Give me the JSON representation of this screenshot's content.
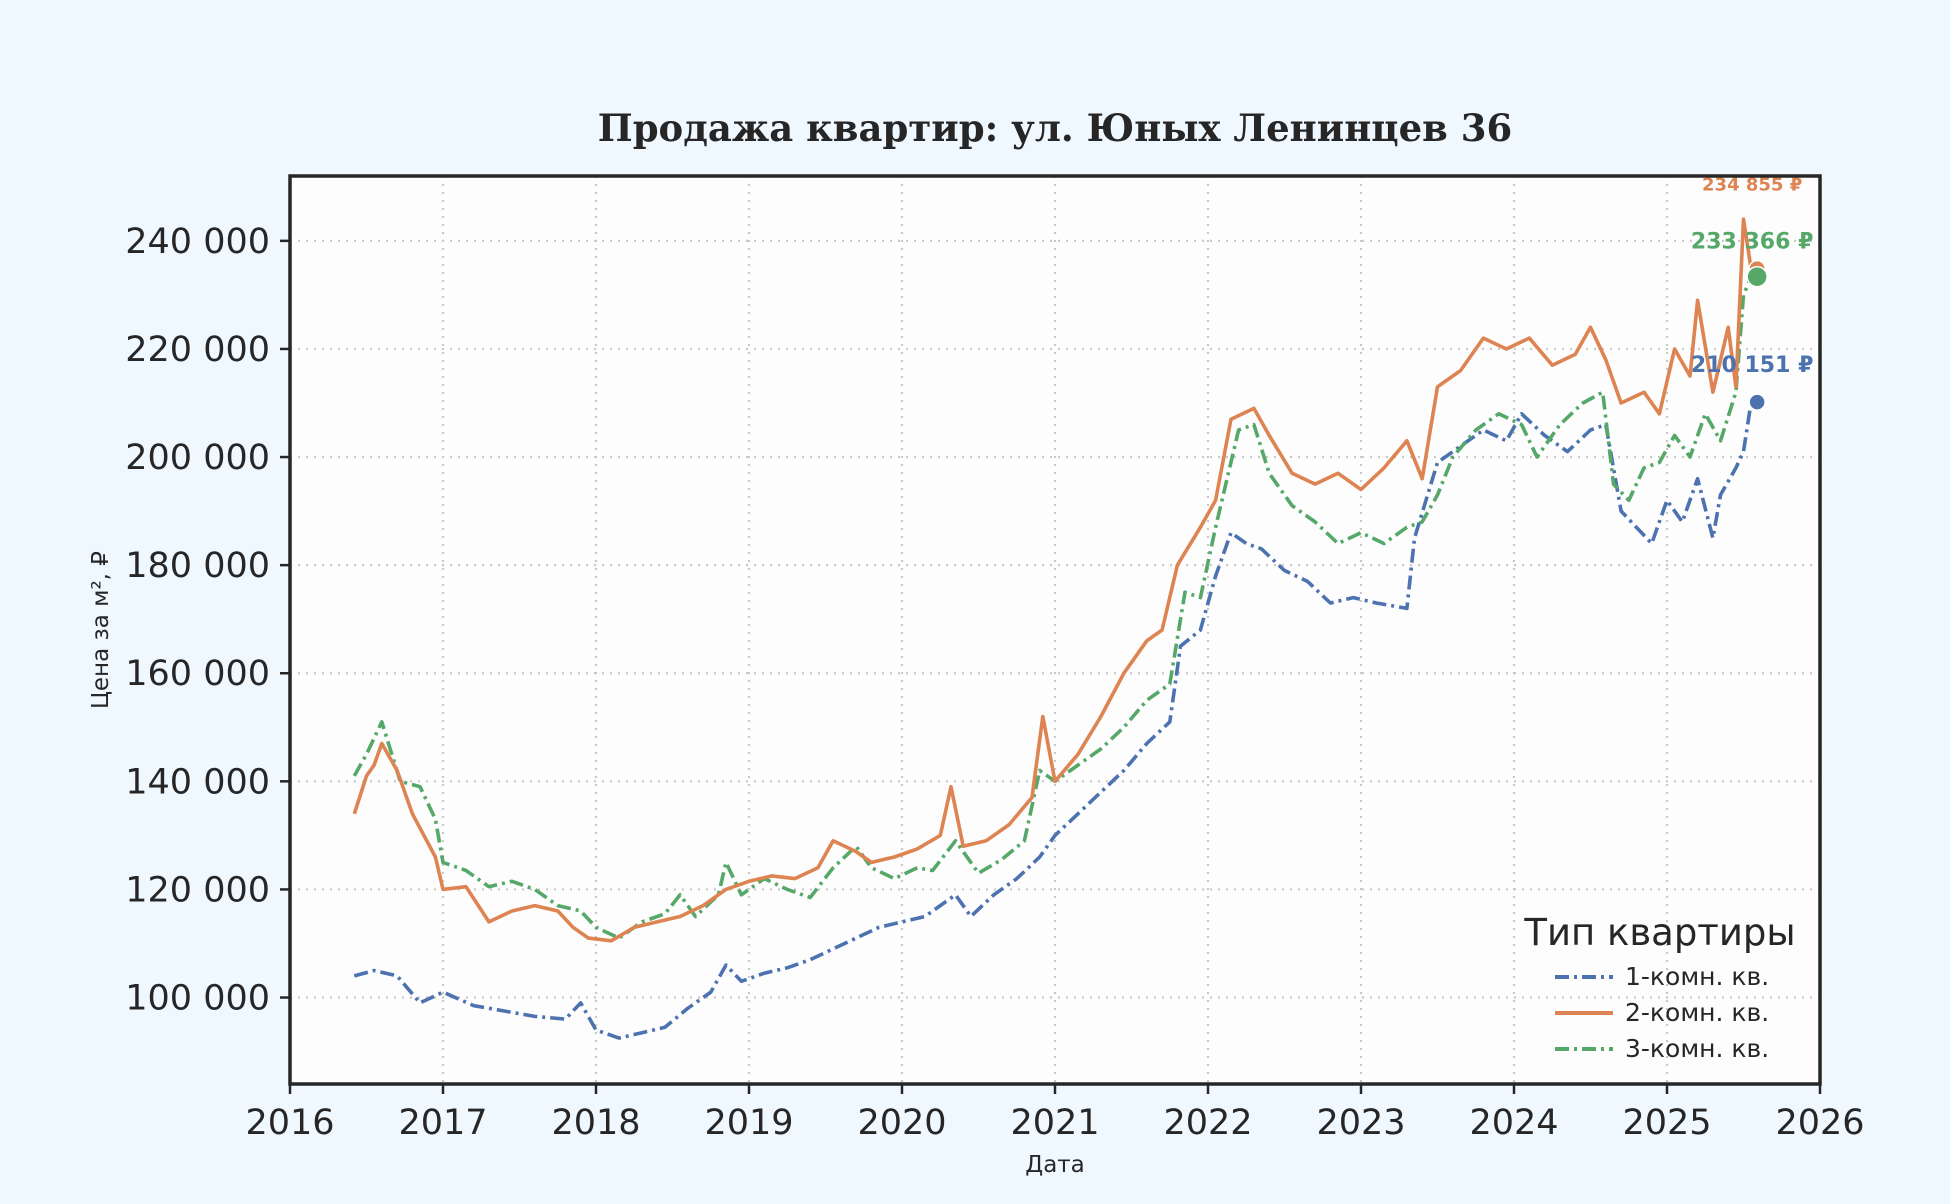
{
  "chart_data": {
    "type": "line",
    "title": "Продажа квартир: ул. Юных Ленинцев 36",
    "xlabel": "Дата",
    "ylabel": "Цена за м², ₽",
    "xlim": [
      2016,
      2026
    ],
    "ylim": [
      84000,
      252000
    ],
    "x_ticks": [
      "2016",
      "2017",
      "2018",
      "2019",
      "2020",
      "2021",
      "2022",
      "2023",
      "2024",
      "2025",
      "2026"
    ],
    "y_ticks": [
      {
        "value": 100000,
        "label": "100 000"
      },
      {
        "value": 120000,
        "label": "120 000"
      },
      {
        "value": 140000,
        "label": "140 000"
      },
      {
        "value": 160000,
        "label": "160 000"
      },
      {
        "value": 180000,
        "label": "180 000"
      },
      {
        "value": 200000,
        "label": "200 000"
      },
      {
        "value": 220000,
        "label": "220 000"
      },
      {
        "value": 240000,
        "label": "240 000"
      }
    ],
    "grid": true,
    "legend": {
      "title": "Тип квартиры",
      "position": "bottom-right"
    },
    "series": [
      {
        "name": "1-комн. кв.",
        "color": "#4c72b0",
        "style": "dashdot",
        "end_label": "210 151 ₽",
        "end_value": 210151,
        "points": [
          [
            2016.42,
            104000
          ],
          [
            2016.55,
            105000
          ],
          [
            2016.7,
            104000
          ],
          [
            2016.85,
            99000
          ],
          [
            2017.0,
            101000
          ],
          [
            2017.2,
            98500
          ],
          [
            2017.4,
            97500
          ],
          [
            2017.6,
            96500
          ],
          [
            2017.8,
            96000
          ],
          [
            2017.9,
            99000
          ],
          [
            2018.0,
            94000
          ],
          [
            2018.15,
            92500
          ],
          [
            2018.3,
            93500
          ],
          [
            2018.45,
            94500
          ],
          [
            2018.6,
            98000
          ],
          [
            2018.75,
            101000
          ],
          [
            2018.85,
            106000
          ],
          [
            2018.95,
            103000
          ],
          [
            2019.1,
            104500
          ],
          [
            2019.25,
            105500
          ],
          [
            2019.4,
            107000
          ],
          [
            2019.55,
            109000
          ],
          [
            2019.7,
            111000
          ],
          [
            2019.85,
            113000
          ],
          [
            2020.0,
            114000
          ],
          [
            2020.15,
            115000
          ],
          [
            2020.25,
            117000
          ],
          [
            2020.35,
            119000
          ],
          [
            2020.45,
            115000
          ],
          [
            2020.6,
            119000
          ],
          [
            2020.75,
            122000
          ],
          [
            2020.9,
            126000
          ],
          [
            2021.0,
            130000
          ],
          [
            2021.15,
            134000
          ],
          [
            2021.3,
            138000
          ],
          [
            2021.45,
            142000
          ],
          [
            2021.6,
            147000
          ],
          [
            2021.75,
            151000
          ],
          [
            2021.82,
            165000
          ],
          [
            2021.95,
            168000
          ],
          [
            2022.05,
            178000
          ],
          [
            2022.15,
            186000
          ],
          [
            2022.25,
            184000
          ],
          [
            2022.35,
            183000
          ],
          [
            2022.5,
            179000
          ],
          [
            2022.65,
            177000
          ],
          [
            2022.8,
            173000
          ],
          [
            2022.95,
            174000
          ],
          [
            2023.1,
            173000
          ],
          [
            2023.3,
            172000
          ],
          [
            2023.35,
            185000
          ],
          [
            2023.5,
            199000
          ],
          [
            2023.65,
            202000
          ],
          [
            2023.8,
            205000
          ],
          [
            2023.95,
            203000
          ],
          [
            2024.05,
            208000
          ],
          [
            2024.2,
            204000
          ],
          [
            2024.35,
            201000
          ],
          [
            2024.5,
            205000
          ],
          [
            2024.6,
            206000
          ],
          [
            2024.7,
            190000
          ],
          [
            2024.8,
            187000
          ],
          [
            2024.9,
            184000
          ],
          [
            2025.0,
            192000
          ],
          [
            2025.1,
            188000
          ],
          [
            2025.2,
            196000
          ],
          [
            2025.3,
            185000
          ],
          [
            2025.35,
            193000
          ],
          [
            2025.45,
            198000
          ],
          [
            2025.5,
            201000
          ],
          [
            2025.55,
            210151
          ]
        ]
      },
      {
        "name": "2-комн. кв.",
        "color": "#dd8452",
        "style": "solid",
        "end_label": "234 855 ₽",
        "end_value": 234855,
        "points": [
          [
            2016.42,
            134000
          ],
          [
            2016.5,
            141000
          ],
          [
            2016.55,
            143000
          ],
          [
            2016.6,
            147000
          ],
          [
            2016.7,
            142000
          ],
          [
            2016.8,
            134000
          ],
          [
            2016.95,
            126000
          ],
          [
            2017.0,
            120000
          ],
          [
            2017.15,
            120500
          ],
          [
            2017.3,
            114000
          ],
          [
            2017.45,
            116000
          ],
          [
            2017.6,
            117000
          ],
          [
            2017.75,
            116000
          ],
          [
            2017.85,
            113000
          ],
          [
            2017.95,
            111000
          ],
          [
            2018.1,
            110500
          ],
          [
            2018.25,
            113000
          ],
          [
            2018.4,
            114000
          ],
          [
            2018.55,
            115000
          ],
          [
            2018.7,
            117000
          ],
          [
            2018.85,
            120000
          ],
          [
            2019.0,
            121500
          ],
          [
            2019.15,
            122500
          ],
          [
            2019.3,
            122000
          ],
          [
            2019.45,
            124000
          ],
          [
            2019.55,
            129000
          ],
          [
            2019.7,
            127000
          ],
          [
            2019.8,
            125000
          ],
          [
            2019.95,
            126000
          ],
          [
            2020.1,
            127500
          ],
          [
            2020.25,
            130000
          ],
          [
            2020.32,
            139000
          ],
          [
            2020.4,
            128000
          ],
          [
            2020.55,
            129000
          ],
          [
            2020.7,
            132000
          ],
          [
            2020.85,
            137000
          ],
          [
            2020.92,
            152000
          ],
          [
            2021.0,
            140000
          ],
          [
            2021.15,
            145000
          ],
          [
            2021.3,
            152000
          ],
          [
            2021.45,
            160000
          ],
          [
            2021.6,
            166000
          ],
          [
            2021.7,
            168000
          ],
          [
            2021.8,
            180000
          ],
          [
            2021.95,
            187000
          ],
          [
            2022.05,
            192000
          ],
          [
            2022.15,
            207000
          ],
          [
            2022.3,
            209000
          ],
          [
            2022.4,
            204000
          ],
          [
            2022.55,
            197000
          ],
          [
            2022.7,
            195000
          ],
          [
            2022.85,
            197000
          ],
          [
            2023.0,
            194000
          ],
          [
            2023.15,
            198000
          ],
          [
            2023.3,
            203000
          ],
          [
            2023.4,
            196000
          ],
          [
            2023.5,
            213000
          ],
          [
            2023.65,
            216000
          ],
          [
            2023.8,
            222000
          ],
          [
            2023.95,
            220000
          ],
          [
            2024.1,
            222000
          ],
          [
            2024.25,
            217000
          ],
          [
            2024.4,
            219000
          ],
          [
            2024.5,
            224000
          ],
          [
            2024.6,
            218000
          ],
          [
            2024.7,
            210000
          ],
          [
            2024.85,
            212000
          ],
          [
            2024.95,
            208000
          ],
          [
            2025.05,
            220000
          ],
          [
            2025.15,
            215000
          ],
          [
            2025.2,
            229000
          ],
          [
            2025.3,
            212000
          ],
          [
            2025.4,
            224000
          ],
          [
            2025.45,
            213000
          ],
          [
            2025.5,
            244000
          ],
          [
            2025.55,
            234855
          ]
        ]
      },
      {
        "name": "3-комн. кв.",
        "color": "#55a868",
        "style": "dashdot",
        "end_label": "233 366 ₽",
        "end_value": 233366,
        "points": [
          [
            2016.42,
            141000
          ],
          [
            2016.5,
            145000
          ],
          [
            2016.6,
            151000
          ],
          [
            2016.72,
            140000
          ],
          [
            2016.85,
            139000
          ],
          [
            2016.95,
            133000
          ],
          [
            2017.0,
            125000
          ],
          [
            2017.15,
            123500
          ],
          [
            2017.3,
            120500
          ],
          [
            2017.45,
            121500
          ],
          [
            2017.6,
            120000
          ],
          [
            2017.75,
            117000
          ],
          [
            2017.9,
            116000
          ],
          [
            2018.0,
            113000
          ],
          [
            2018.15,
            111000
          ],
          [
            2018.3,
            114000
          ],
          [
            2018.45,
            115500
          ],
          [
            2018.55,
            119000
          ],
          [
            2018.65,
            115000
          ],
          [
            2018.8,
            119000
          ],
          [
            2018.85,
            125000
          ],
          [
            2018.95,
            119000
          ],
          [
            2019.1,
            122000
          ],
          [
            2019.25,
            120000
          ],
          [
            2019.4,
            118500
          ],
          [
            2019.55,
            124000
          ],
          [
            2019.7,
            128000
          ],
          [
            2019.8,
            124000
          ],
          [
            2019.95,
            122000
          ],
          [
            2020.1,
            124000
          ],
          [
            2020.2,
            123500
          ],
          [
            2020.35,
            129000
          ],
          [
            2020.5,
            123000
          ],
          [
            2020.65,
            125500
          ],
          [
            2020.8,
            129000
          ],
          [
            2020.9,
            142000
          ],
          [
            2021.0,
            140000
          ],
          [
            2021.15,
            143000
          ],
          [
            2021.3,
            146000
          ],
          [
            2021.45,
            150000
          ],
          [
            2021.6,
            155000
          ],
          [
            2021.75,
            158000
          ],
          [
            2021.85,
            175000
          ],
          [
            2021.95,
            174000
          ],
          [
            2022.05,
            187000
          ],
          [
            2022.2,
            205000
          ],
          [
            2022.3,
            206000
          ],
          [
            2022.4,
            197000
          ],
          [
            2022.55,
            191000
          ],
          [
            2022.7,
            188000
          ],
          [
            2022.85,
            184000
          ],
          [
            2023.0,
            186000
          ],
          [
            2023.15,
            184000
          ],
          [
            2023.3,
            187000
          ],
          [
            2023.4,
            188000
          ],
          [
            2023.5,
            193000
          ],
          [
            2023.6,
            200000
          ],
          [
            2023.75,
            205000
          ],
          [
            2023.9,
            208000
          ],
          [
            2024.05,
            206000
          ],
          [
            2024.15,
            200000
          ],
          [
            2024.3,
            206000
          ],
          [
            2024.45,
            210000
          ],
          [
            2024.58,
            212000
          ],
          [
            2024.65,
            195000
          ],
          [
            2024.75,
            192000
          ],
          [
            2024.85,
            198000
          ],
          [
            2024.95,
            199000
          ],
          [
            2025.05,
            204000
          ],
          [
            2025.15,
            200000
          ],
          [
            2025.25,
            208000
          ],
          [
            2025.35,
            203000
          ],
          [
            2025.45,
            212000
          ],
          [
            2025.5,
            230000
          ],
          [
            2025.55,
            233366
          ]
        ]
      }
    ]
  }
}
